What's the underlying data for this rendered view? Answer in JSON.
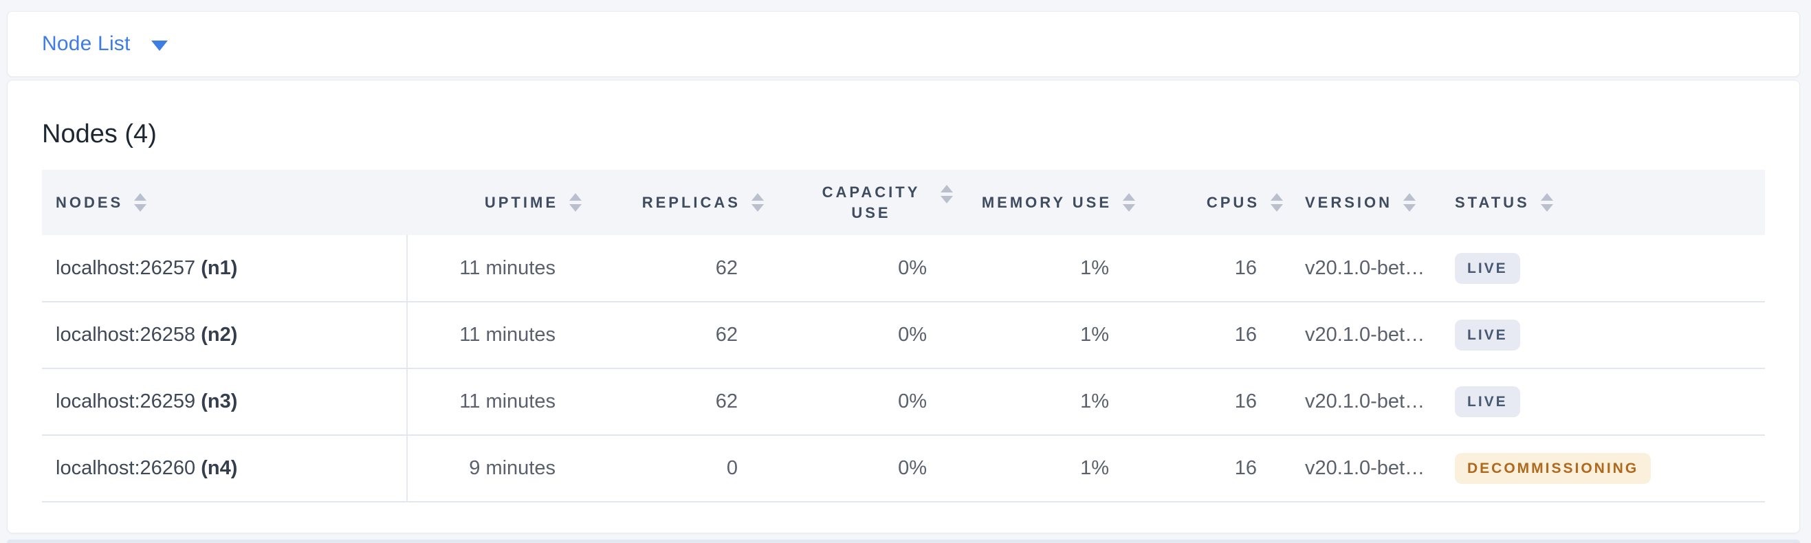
{
  "nav": {
    "view_selector": "Node List"
  },
  "panel": {
    "title": "Nodes (4)"
  },
  "table": {
    "columns": [
      {
        "key": "nodes",
        "label": "NODES"
      },
      {
        "key": "uptime",
        "label": "UPTIME"
      },
      {
        "key": "replicas",
        "label": "REPLICAS"
      },
      {
        "key": "capacity",
        "label": "CAPACITY USE"
      },
      {
        "key": "memory",
        "label": "MEMORY USE"
      },
      {
        "key": "cpus",
        "label": "CPUS"
      },
      {
        "key": "version",
        "label": "VERSION"
      },
      {
        "key": "status",
        "label": "STATUS"
      }
    ],
    "rows": [
      {
        "node": "localhost:26257",
        "node_id": "(n1)",
        "uptime": "11 minutes",
        "replicas": "62",
        "capacity": "0%",
        "memory": "1%",
        "cpus": "16",
        "version": "v20.1.0-bet…",
        "status": "LIVE",
        "status_type": "live"
      },
      {
        "node": "localhost:26258",
        "node_id": "(n2)",
        "uptime": "11 minutes",
        "replicas": "62",
        "capacity": "0%",
        "memory": "1%",
        "cpus": "16",
        "version": "v20.1.0-bet…",
        "status": "LIVE",
        "status_type": "live"
      },
      {
        "node": "localhost:26259",
        "node_id": "(n3)",
        "uptime": "11 minutes",
        "replicas": "62",
        "capacity": "0%",
        "memory": "1%",
        "cpus": "16",
        "version": "v20.1.0-bet…",
        "status": "LIVE",
        "status_type": "live"
      },
      {
        "node": "localhost:26260",
        "node_id": "(n4)",
        "uptime": "9 minutes",
        "replicas": "0",
        "capacity": "0%",
        "memory": "1%",
        "cpus": "16",
        "version": "v20.1.0-bet…",
        "status": "DECOMMISSIONING",
        "status_type": "decommissioning"
      }
    ]
  },
  "colors": {
    "accent_blue": "#3d7de4",
    "live_badge_bg": "#e7eaf3",
    "live_badge_text": "#475872",
    "decommissioning_badge_bg": "#faf0dc",
    "decommissioning_badge_text": "#b0681c",
    "header_bg": "#f4f5f9",
    "page_bg": "#f4f6fa"
  }
}
